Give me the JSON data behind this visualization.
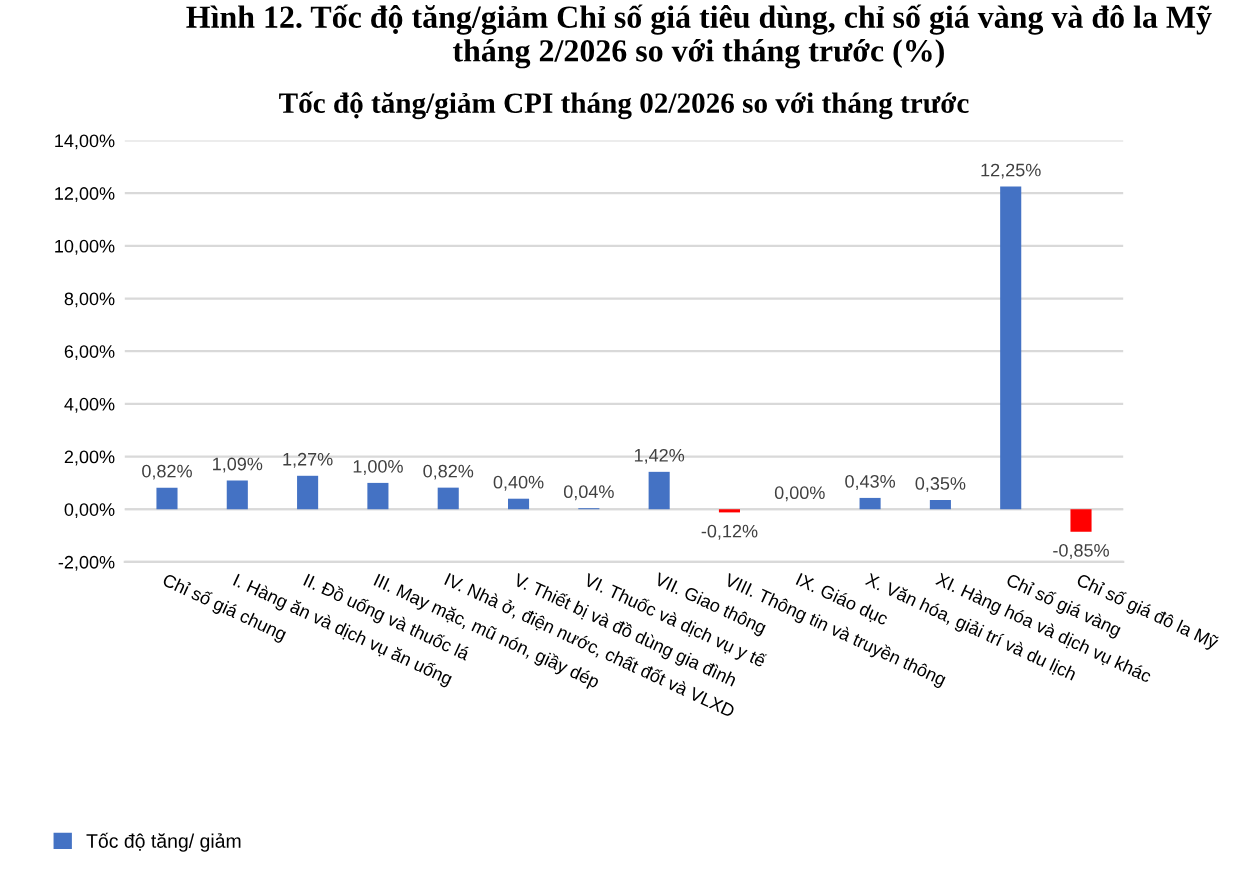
{
  "chart_data": {
    "type": "bar",
    "title": "Hình 12. Tốc độ tăng/giảm Chỉ số giá tiêu dùng, chỉ số giá vàng và đô la Mỹ tháng 2/2026 so với tháng trước (%)",
    "subtitle": "Tốc độ tăng/giảm CPI tháng 02/2026 so với tháng trước",
    "categories": [
      "Chỉ số giá chung",
      "I. Hàng ăn và dịch vụ ăn uống",
      "II. Đồ uống và thuốc lá",
      "III. May mặc, mũ nón, giầy dép",
      "IV. Nhà ở, điện nước, chất đốt và VLXD",
      "V. Thiết bị và đồ dùng gia đình",
      "VI. Thuốc và dịch vụ y tế",
      "VII. Giao thông",
      "VIII. Thông tin và truyền thông",
      "IX. Giáo dục",
      "X. Văn hóa, giải trí và du lịch",
      "XI. Hàng hóa và dịch vụ khác",
      "Chỉ số giá vàng",
      "Chỉ số giá đô la Mỹ"
    ],
    "series": [
      {
        "name": "Tốc độ tăng/ giảm",
        "color": "#4472c4",
        "values": [
          0.82,
          1.09,
          1.27,
          1.0,
          0.82,
          0.4,
          0.04,
          1.42,
          -0.12,
          0.0,
          0.43,
          0.35,
          12.25,
          -0.85
        ],
        "colors": [
          "#4472c4",
          "#4472c4",
          "#4472c4",
          "#4472c4",
          "#4472c4",
          "#4472c4",
          "#4472c4",
          "#4472c4",
          "#ff0000",
          "#4472c4",
          "#4472c4",
          "#4472c4",
          "#4472c4",
          "#ff0000"
        ],
        "value_labels": [
          "0,82%",
          "1,09%",
          "1,27%",
          "1,00%",
          "0,82%",
          "0,40%",
          "0,04%",
          "1,42%",
          "-0,12%",
          "0,00%",
          "0,43%",
          "0,35%",
          "12,25%",
          "-0,85%"
        ]
      }
    ],
    "ylim": [
      -2,
      14
    ],
    "yticks": [
      {
        "value": -2,
        "label": "-2,00%"
      },
      {
        "value": 0,
        "label": "0,00%"
      },
      {
        "value": 2,
        "label": "2,00%"
      },
      {
        "value": 4,
        "label": "4,00%"
      },
      {
        "value": 6,
        "label": "6,00%"
      },
      {
        "value": 8,
        "label": "8,00%"
      },
      {
        "value": 10,
        "label": "10,00%"
      },
      {
        "value": 12,
        "label": "12,00%"
      },
      {
        "value": 14,
        "label": "14,00%"
      }
    ],
    "grid": "y",
    "legend": "bottom left"
  }
}
